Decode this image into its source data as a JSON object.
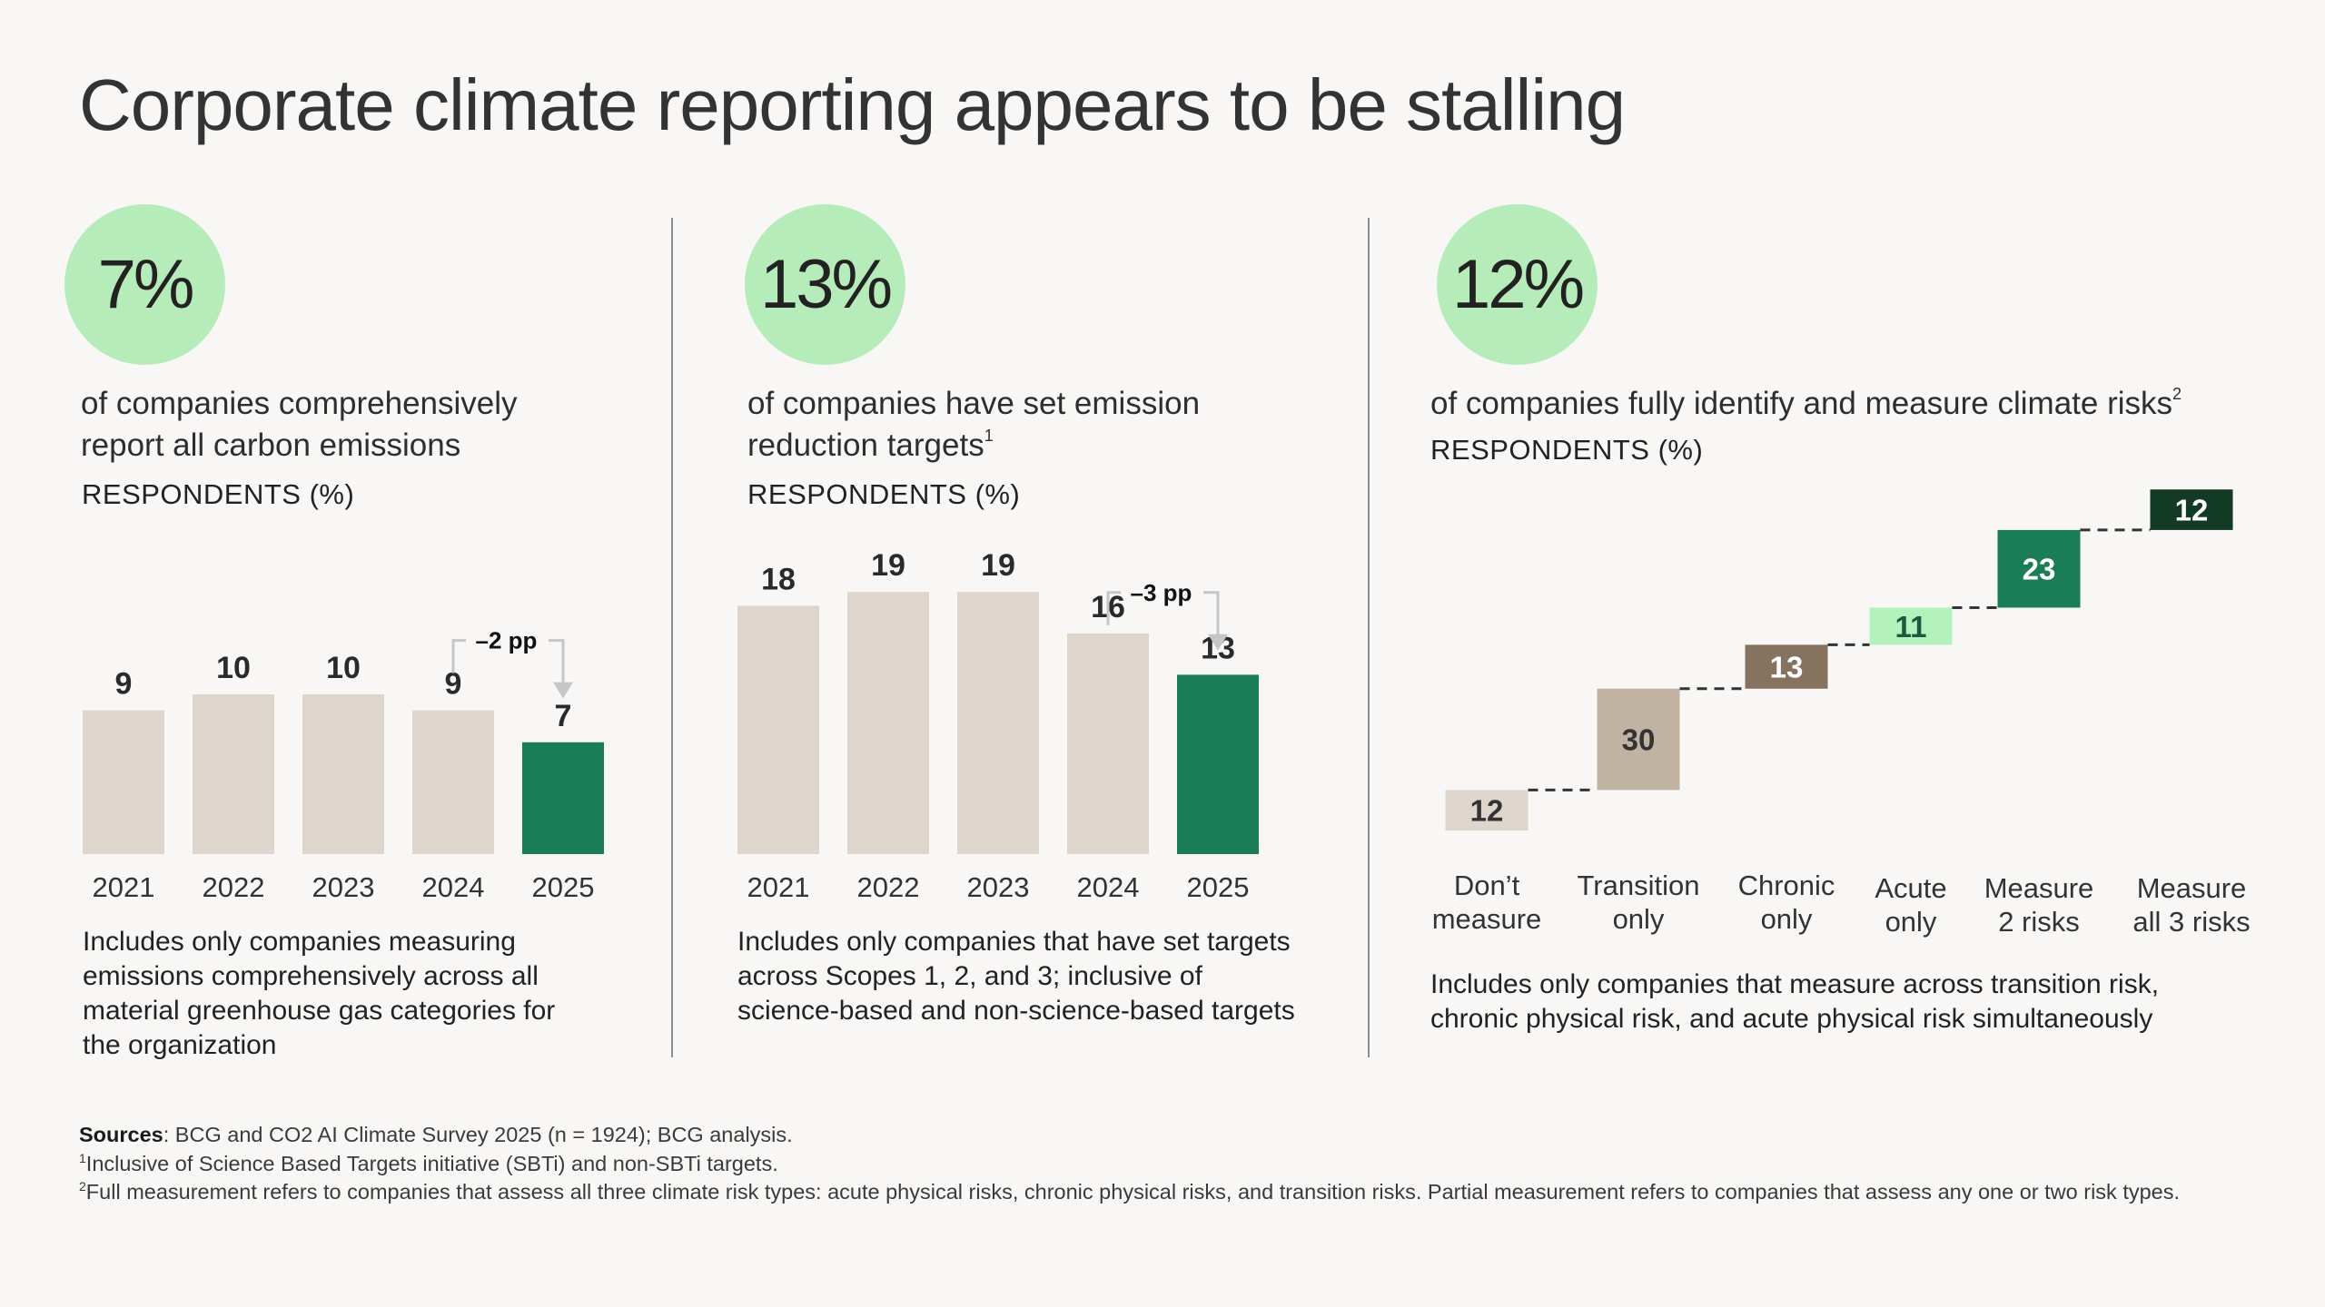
{
  "title": "Corporate climate reporting appears to be stalling",
  "colors": {
    "bar_gray": "#ded6cd",
    "bar_green": "#1b7d57",
    "circle": "#b6ecb9",
    "w_light": "#ded6cd",
    "w_tan": "#c1b3a2",
    "w_brown": "#85725f",
    "w_mint": "#b3f1bd",
    "w_green": "#1b7d57",
    "w_dark": "#133a24"
  },
  "panels": [
    {
      "stat": "7%",
      "desc_lines": [
        "of companies comprehensively",
        "report all carbon emissions"
      ],
      "desc_sup": "",
      "respondents": "RESPONDENTS (%)",
      "note_lines": [
        "Includes only companies measuring",
        "emissions comprehensively across all",
        "material greenhouse gas categories for",
        "the organization"
      ]
    },
    {
      "stat": "13%",
      "desc_lines": [
        "of companies have set emission",
        "reduction targets"
      ],
      "desc_sup": "1",
      "respondents": "RESPONDENTS (%)",
      "note_lines": [
        "Includes only companies that have set targets",
        "across Scopes 1, 2, and 3; inclusive of",
        "science-based and non-science-based targets"
      ]
    },
    {
      "stat": "12%",
      "desc_lines": [
        "of companies fully identify and measure climate risks"
      ],
      "desc_sup": "2",
      "respondents": "RESPONDENTS (%)",
      "note_lines": [
        "Includes only companies that measure across transition risk,",
        "chronic physical risk, and acute physical risk simultaneously"
      ]
    }
  ],
  "chart_data": [
    {
      "type": "bar",
      "title": "of companies comprehensively report all carbon emissions",
      "ylabel": "RESPONDENTS (%)",
      "categories": [
        "2021",
        "2022",
        "2023",
        "2024",
        "2025"
      ],
      "values": [
        9,
        10,
        10,
        9,
        7
      ],
      "highlight_index": 4,
      "annotation": "–2 pp"
    },
    {
      "type": "bar",
      "title": "of companies have set emission reduction targets",
      "ylabel": "RESPONDENTS (%)",
      "categories": [
        "2021",
        "2022",
        "2023",
        "2024",
        "2025"
      ],
      "values": [
        18,
        19,
        19,
        16,
        13
      ],
      "highlight_index": 4,
      "annotation": "–3 pp"
    },
    {
      "type": "waterfall",
      "title": "of companies fully identify and measure climate risks",
      "ylabel": "RESPONDENTS (%)",
      "categories": [
        "Don’t measure",
        "Transition only",
        "Chronic only",
        "Acute only",
        "Measure 2 risks",
        "Measure all 3 risks"
      ],
      "category_lines": [
        [
          "Don’t",
          "measure"
        ],
        [
          "Transition",
          "only"
        ],
        [
          "Chronic",
          "only"
        ],
        [
          "Acute",
          "only"
        ],
        [
          "Measure",
          "2 risks"
        ],
        [
          "Measure",
          "all 3 risks"
        ]
      ],
      "values": [
        12,
        30,
        13,
        11,
        23,
        12
      ]
    }
  ],
  "sources": {
    "label": "Sources",
    "text": ": BCG and CO2 AI Climate Survey 2025 (n = 1924); BCG analysis.",
    "fn1_num": "1",
    "fn1": "Inclusive of Science Based Targets initiative (SBTi) and non-SBTi targets.",
    "fn2_num": "2",
    "fn2": "Full measurement refers to companies that assess all three climate risk types: acute physical risks, chronic physical risks, and transition risks. Partial measurement refers to companies that assess any one or two risk types."
  }
}
